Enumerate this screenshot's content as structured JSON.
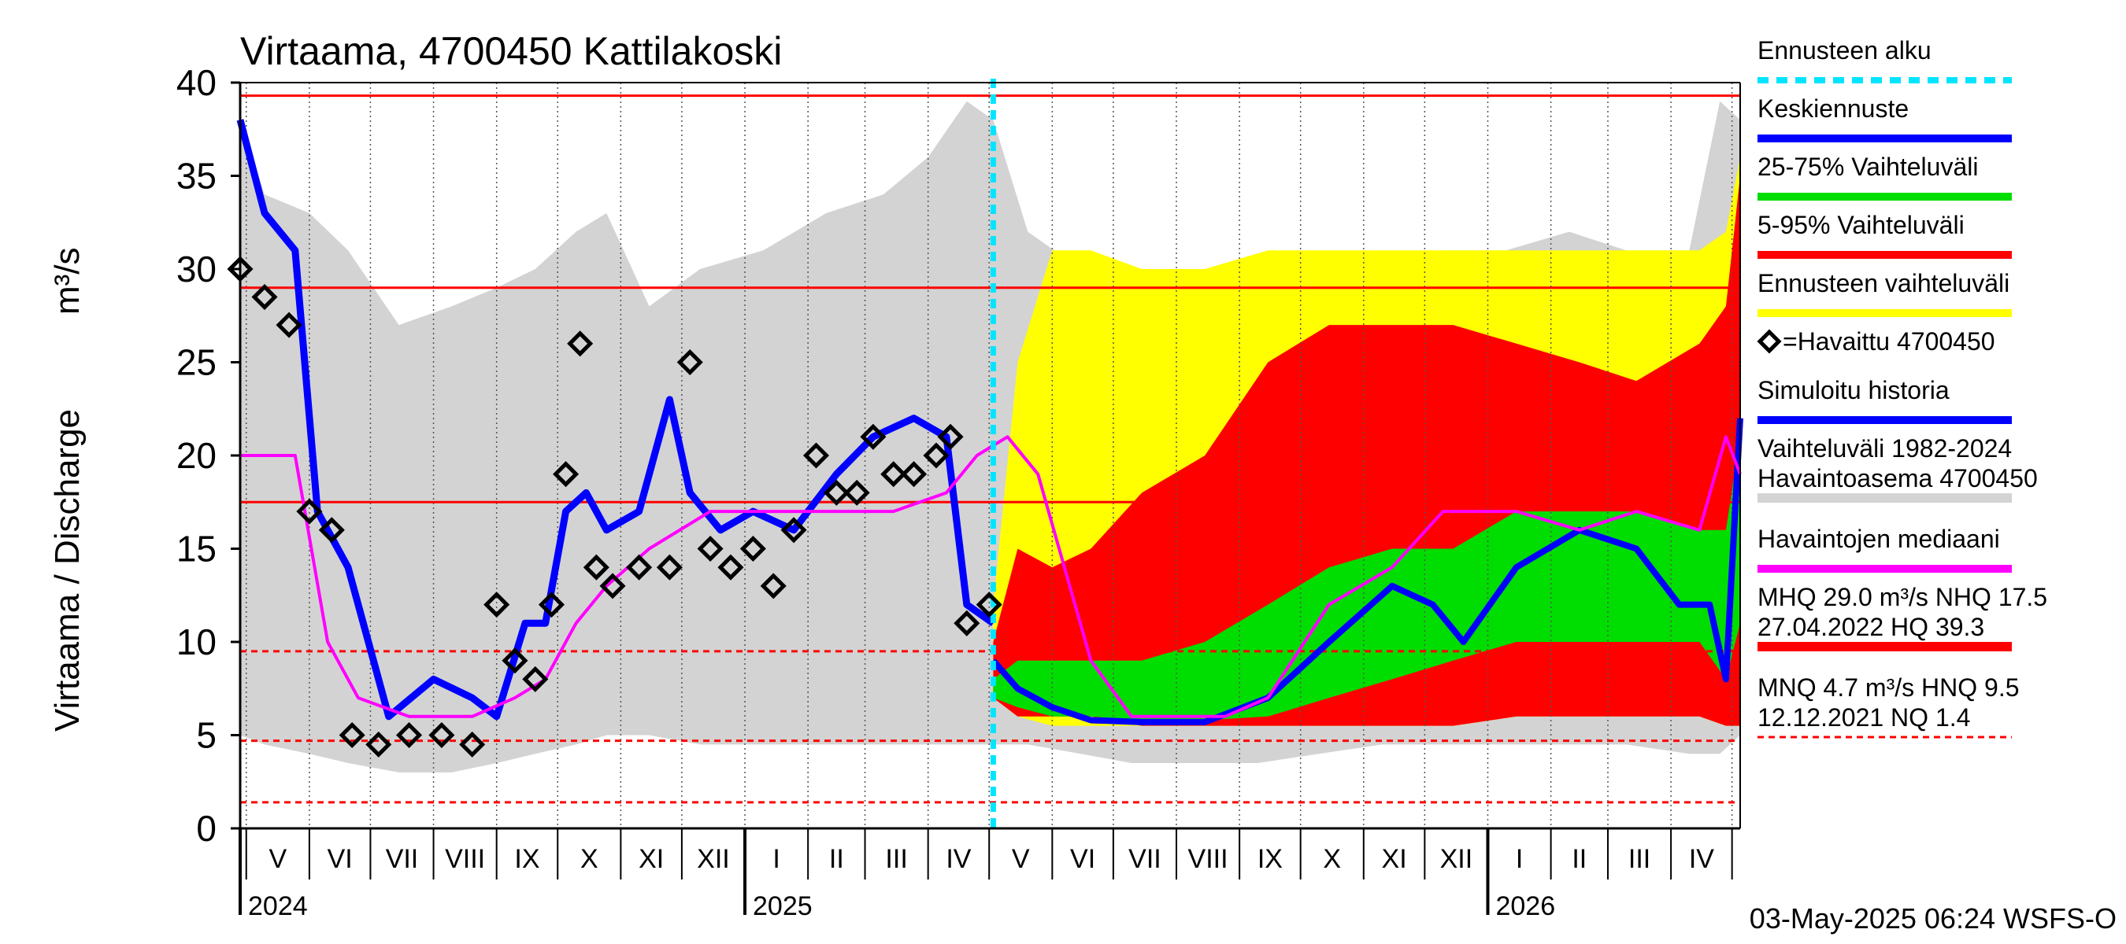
{
  "chart_data": {
    "type": "area",
    "title": "Virtaama, 4700450 Kattilakoski",
    "ylabel": "Virtaama / Discharge",
    "yunit": "m³/s",
    "ylim": [
      0,
      40
    ],
    "yticks": [
      0,
      5,
      10,
      15,
      20,
      25,
      30,
      35,
      40
    ],
    "x_range": [
      "2024-04-28",
      "2026-05-05"
    ],
    "forecast_start": "2025-05-03",
    "months": [
      "V",
      "VI",
      "VII",
      "VIII",
      "IX",
      "X",
      "XI",
      "XII",
      "I",
      "II",
      "III",
      "IV",
      "V",
      "VI",
      "VII",
      "VIII",
      "IX",
      "X",
      "XI",
      "XII",
      "I",
      "II",
      "III",
      "IV"
    ],
    "years": [
      "2024",
      "2025",
      "2026"
    ],
    "reference_lines": [
      {
        "label": "HQ",
        "value": 39.3,
        "style": "solid"
      },
      {
        "label": "MHQ",
        "value": 29.0,
        "style": "solid"
      },
      {
        "label": "NHQ",
        "value": 17.5,
        "style": "solid"
      },
      {
        "label": "HNQ",
        "value": 9.5,
        "style": "dashed"
      },
      {
        "label": "MNQ",
        "value": 4.7,
        "style": "dashed"
      },
      {
        "label": "NQ",
        "value": 1.4,
        "style": "dashed"
      }
    ],
    "colors": {
      "historical_range": "#d3d3d3",
      "forecast_range": "#ffff00",
      "band_5_95": "#ff0000",
      "band_25_75": "#00dd00",
      "mean_forecast": "#0000ff",
      "simulated": "#0000ff",
      "median": "#ff00ff",
      "observed": "#000000",
      "forecast_start": "#00e5ff",
      "reference": "#ff0000"
    },
    "series": [
      {
        "name": "Vaihteluväli 1982-2024 Havaintoasema 4700450",
        "type": "range",
        "x": [
          "2024-04-28",
          "2024-05-10",
          "2024-06-01",
          "2024-06-20",
          "2024-07-15",
          "2024-08-10",
          "2024-09-01",
          "2024-09-20",
          "2024-10-10",
          "2024-10-25",
          "2024-11-15",
          "2024-12-10",
          "2025-01-10",
          "2025-02-10",
          "2025-03-10",
          "2025-04-01",
          "2025-04-20",
          "2025-05-03",
          "2025-05-20",
          "2025-06-15",
          "2025-07-10",
          "2025-08-10",
          "2025-09-10",
          "2025-10-10",
          "2025-11-10",
          "2025-12-10",
          "2026-01-10",
          "2026-02-10",
          "2026-03-10",
          "2026-04-10",
          "2026-04-25",
          "2026-05-05"
        ],
        "low": [
          5,
          4.5,
          4,
          3.5,
          3,
          3,
          3.5,
          4,
          4.5,
          5,
          5,
          4.5,
          4.5,
          4.5,
          4.5,
          4.5,
          4.5,
          4.5,
          4.5,
          4,
          3.5,
          3.5,
          3.5,
          4,
          4.5,
          4.5,
          4.5,
          4.5,
          4.5,
          4,
          4,
          5
        ],
        "high": [
          38,
          34,
          33,
          31,
          27,
          28,
          29,
          30,
          32,
          33,
          28,
          30,
          31,
          33,
          34,
          36,
          39,
          38,
          32,
          30,
          30,
          28,
          27,
          27,
          30,
          31,
          31,
          32,
          31,
          31,
          39,
          38
        ]
      },
      {
        "name": "Ennusteen vaihteluväli",
        "type": "range",
        "x": [
          "2025-05-03",
          "2025-05-15",
          "2025-06-01",
          "2025-06-20",
          "2025-07-15",
          "2025-08-15",
          "2025-09-15",
          "2025-10-15",
          "2025-11-15",
          "2025-12-15",
          "2026-01-15",
          "2026-02-15",
          "2026-03-15",
          "2026-04-15",
          "2026-04-28",
          "2026-05-05"
        ],
        "low": [
          7,
          6,
          5.5,
          5.5,
          5.5,
          5.5,
          5.5,
          5.5,
          5.5,
          5.5,
          6,
          6,
          6,
          6,
          5.5,
          5.5
        ],
        "high": [
          12,
          25,
          31,
          31,
          30,
          30,
          31,
          31,
          31,
          31,
          31,
          31,
          31,
          31,
          32,
          36
        ]
      },
      {
        "name": "5-95% Vaihteluväli",
        "type": "range",
        "x": [
          "2025-05-03",
          "2025-05-15",
          "2025-06-01",
          "2025-06-20",
          "2025-07-15",
          "2025-08-15",
          "2025-09-15",
          "2025-10-15",
          "2025-11-15",
          "2025-12-15",
          "2026-01-15",
          "2026-02-15",
          "2026-03-15",
          "2026-04-15",
          "2026-04-28",
          "2026-05-05"
        ],
        "low": [
          7,
          6,
          6,
          6,
          5.5,
          5.5,
          5.5,
          5.5,
          5.5,
          5.5,
          6,
          6,
          6,
          6,
          5.5,
          5.5
        ],
        "high": [
          10,
          15,
          14,
          15,
          18,
          20,
          25,
          27,
          27,
          27,
          26,
          25,
          24,
          26,
          28,
          35
        ]
      },
      {
        "name": "25-75% Vaihteluväli",
        "type": "range",
        "x": [
          "2025-05-03",
          "2025-05-15",
          "2025-06-01",
          "2025-06-20",
          "2025-07-15",
          "2025-08-15",
          "2025-09-15",
          "2025-10-15",
          "2025-11-15",
          "2025-12-15",
          "2026-01-15",
          "2026-02-15",
          "2026-03-15",
          "2026-04-15",
          "2026-04-28",
          "2026-05-05"
        ],
        "low": [
          7,
          6.5,
          6,
          6,
          5.8,
          5.8,
          6,
          7,
          8,
          9,
          10,
          10,
          10,
          10,
          8,
          11
        ],
        "high": [
          8,
          9,
          9,
          9,
          9,
          10,
          12,
          14,
          15,
          15,
          17,
          17,
          17,
          16,
          16,
          21
        ]
      },
      {
        "name": "Keskiennuste",
        "type": "line",
        "x": [
          "2025-05-03",
          "2025-05-15",
          "2025-06-01",
          "2025-06-20",
          "2025-07-15",
          "2025-08-15",
          "2025-09-15",
          "2025-10-15",
          "2025-11-15",
          "2025-12-05",
          "2025-12-20",
          "2026-01-15",
          "2026-02-15",
          "2026-03-15",
          "2026-04-05",
          "2026-04-20",
          "2026-04-28",
          "2026-05-05"
        ],
        "y": [
          9,
          7.5,
          6.5,
          5.8,
          5.7,
          5.7,
          7,
          10,
          13,
          12,
          10,
          14,
          16,
          15,
          12,
          12,
          8,
          22
        ]
      },
      {
        "name": "Simuloitu historia",
        "type": "line",
        "x": [
          "2024-04-28",
          "2024-05-10",
          "2024-05-25",
          "2024-06-05",
          "2024-06-20",
          "2024-07-10",
          "2024-08-01",
          "2024-08-20",
          "2024-09-01",
          "2024-09-15",
          "2024-09-25",
          "2024-10-05",
          "2024-10-15",
          "2024-10-25",
          "2024-11-10",
          "2024-11-25",
          "2024-12-05",
          "2024-12-20",
          "2025-01-05",
          "2025-01-25",
          "2025-02-15",
          "2025-03-05",
          "2025-03-25",
          "2025-04-10",
          "2025-04-20",
          "2025-05-03"
        ],
        "y": [
          38,
          33,
          31,
          17,
          14,
          6,
          8,
          7,
          6,
          11,
          11,
          17,
          18,
          16,
          17,
          23,
          18,
          16,
          17,
          16,
          19,
          21,
          22,
          21,
          12,
          11
        ]
      },
      {
        "name": "Havaintojen mediaani",
        "type": "line",
        "x": [
          "2024-04-28",
          "2024-05-25",
          "2024-06-10",
          "2024-06-25",
          "2024-07-20",
          "2024-08-20",
          "2024-09-10",
          "2024-09-25",
          "2024-10-10",
          "2024-10-25",
          "2024-11-15",
          "2024-12-15",
          "2025-01-15",
          "2025-02-15",
          "2025-03-15",
          "2025-04-10",
          "2025-04-25",
          "2025-05-10",
          "2025-05-25",
          "2025-06-20",
          "2025-07-10",
          "2025-08-01",
          "2025-08-25",
          "2025-09-15",
          "2025-10-15",
          "2025-11-15",
          "2025-12-10",
          "2026-01-15",
          "2026-02-15",
          "2026-03-15",
          "2026-04-15",
          "2026-04-28",
          "2026-05-05"
        ],
        "y": [
          20,
          20,
          10,
          7,
          6,
          6,
          7,
          8,
          11,
          13,
          15,
          17,
          17,
          17,
          17,
          18,
          20,
          21,
          19,
          9,
          6,
          6,
          6,
          7,
          12,
          14,
          17,
          17,
          16,
          17,
          16,
          21,
          19
        ]
      },
      {
        "name": "=Havaittu 4700450",
        "type": "scatter",
        "x": [
          "2024-04-28",
          "2024-05-10",
          "2024-05-22",
          "2024-06-01",
          "2024-06-12",
          "2024-06-22",
          "2024-07-05",
          "2024-07-20",
          "2024-08-05",
          "2024-08-20",
          "2024-09-01",
          "2024-09-10",
          "2024-09-20",
          "2024-09-28",
          "2024-10-05",
          "2024-10-12",
          "2024-10-20",
          "2024-10-28",
          "2024-11-10",
          "2024-11-25",
          "2024-12-05",
          "2024-12-15",
          "2024-12-25",
          "2025-01-05",
          "2025-01-15",
          "2025-01-25",
          "2025-02-05",
          "2025-02-15",
          "2025-02-25",
          "2025-03-05",
          "2025-03-15",
          "2025-03-25",
          "2025-04-05",
          "2025-04-12",
          "2025-04-20",
          "2025-05-01"
        ],
        "y": [
          30,
          28.5,
          27,
          17,
          16,
          5,
          4.5,
          5,
          5,
          4.5,
          12,
          9,
          8,
          12,
          19,
          26,
          14,
          13,
          14,
          14,
          25,
          15,
          14,
          15,
          13,
          16,
          20,
          18,
          18,
          21,
          19,
          19,
          20,
          21,
          11,
          12
        ]
      }
    ]
  },
  "legend": [
    {
      "label": "Ennusteen alku",
      "color": "#00e5ff",
      "style": "dashed"
    },
    {
      "label": "Keskiennuste",
      "color": "#0000ff",
      "style": "solid"
    },
    {
      "label": "25-75% Vaihteluväli",
      "color": "#00dd00",
      "style": "solid"
    },
    {
      "label": "5-95% Vaihteluväli",
      "color": "#ff0000",
      "style": "solid"
    },
    {
      "label": "Ennusteen vaihteluväli",
      "color": "#ffff00",
      "style": "solid"
    },
    {
      "label": "=Havaittu 4700450",
      "color": "#000000",
      "style": "marker"
    },
    {
      "label": "Simuloitu historia",
      "color": "#0000ff",
      "style": "solid"
    },
    {
      "label_line1": "Vaihteluväli 1982-2024",
      "label_line2": " Havaintoasema 4700450",
      "color": "#d3d3d3",
      "style": "solid"
    },
    {
      "label": "Havaintojen mediaani",
      "color": "#ff00ff",
      "style": "solid"
    },
    {
      "label_line1": "MHQ 29.0 m³/s NHQ 17.5",
      "label_line2": "27.04.2022 HQ 39.3",
      "color": "#ff0000",
      "style": "solid"
    },
    {
      "label_line1": "MNQ  4.7 m³/s HNQ  9.5",
      "label_line2": "12.12.2021 NQ  1.4",
      "color": "#ff0000",
      "style": "dashed"
    }
  ],
  "footer": "03-May-2025 06:24 WSFS-O"
}
